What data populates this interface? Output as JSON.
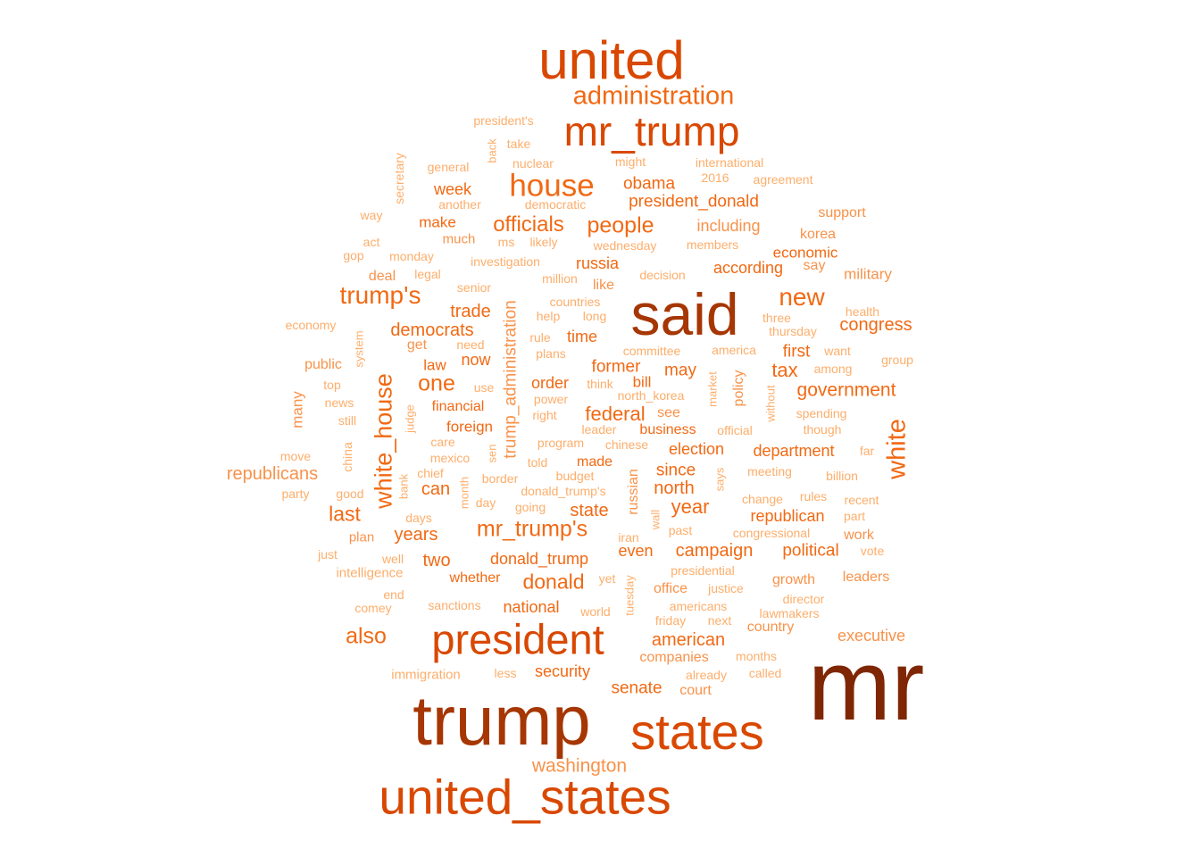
{
  "palette": {
    "darkest": "#7f2704",
    "dark": "#a63603",
    "strong": "#d94801",
    "medium": "#f16913",
    "light": "#f8924a",
    "lightest": "#fdae6b"
  },
  "words": [
    {
      "text": "mr",
      "tier": "darkest"
    },
    {
      "text": "trump",
      "tier": "dark"
    },
    {
      "text": "said",
      "tier": "dark"
    },
    {
      "text": "united",
      "tier": "strong"
    },
    {
      "text": "states",
      "tier": "strong"
    },
    {
      "text": "united_states",
      "tier": "strong"
    },
    {
      "text": "president",
      "tier": "strong"
    },
    {
      "text": "mr_trump",
      "tier": "strong"
    },
    {
      "text": "house",
      "tier": "medium"
    },
    {
      "text": "administration",
      "tier": "medium"
    },
    {
      "text": "white",
      "tier": "medium"
    },
    {
      "text": "white_house",
      "tier": "medium"
    },
    {
      "text": "trump's",
      "tier": "medium"
    },
    {
      "text": "new",
      "tier": "medium"
    },
    {
      "text": "people",
      "tier": "medium"
    },
    {
      "text": "officials",
      "tier": "medium"
    },
    {
      "text": "one",
      "tier": "medium"
    },
    {
      "text": "mr_trump's",
      "tier": "medium"
    },
    {
      "text": "also",
      "tier": "medium"
    },
    {
      "text": "washington",
      "tier": "light"
    },
    {
      "text": "donald",
      "tier": "medium"
    },
    {
      "text": "government",
      "tier": "medium"
    },
    {
      "text": "federal",
      "tier": "medium"
    },
    {
      "text": "last",
      "tier": "medium"
    },
    {
      "text": "republicans",
      "tier": "light"
    },
    {
      "text": "trump_administration",
      "tier": "light"
    },
    {
      "text": "democrats",
      "tier": "medium"
    },
    {
      "text": "year",
      "tier": "medium"
    },
    {
      "text": "north",
      "tier": "medium"
    },
    {
      "text": "congress",
      "tier": "medium"
    },
    {
      "text": "tax",
      "tier": "medium"
    },
    {
      "text": "can",
      "tier": "medium"
    },
    {
      "text": "campaign",
      "tier": "medium"
    },
    {
      "text": "state",
      "tier": "medium"
    },
    {
      "text": "american",
      "tier": "medium"
    },
    {
      "text": "security",
      "tier": "medium"
    },
    {
      "text": "senate",
      "tier": "medium"
    },
    {
      "text": "two",
      "tier": "medium"
    },
    {
      "text": "years",
      "tier": "medium"
    },
    {
      "text": "obama",
      "tier": "medium"
    },
    {
      "text": "president_donald",
      "tier": "medium"
    },
    {
      "text": "trade",
      "tier": "medium"
    },
    {
      "text": "first",
      "tier": "medium"
    },
    {
      "text": "former",
      "tier": "medium"
    },
    {
      "text": "may",
      "tier": "medium"
    },
    {
      "text": "since",
      "tier": "medium"
    },
    {
      "text": "political",
      "tier": "medium"
    },
    {
      "text": "week",
      "tier": "medium"
    },
    {
      "text": "according",
      "tier": "medium"
    },
    {
      "text": "department",
      "tier": "medium"
    },
    {
      "text": "donald_trump",
      "tier": "medium"
    },
    {
      "text": "national",
      "tier": "medium"
    },
    {
      "text": "election",
      "tier": "medium"
    },
    {
      "text": "russia",
      "tier": "medium"
    },
    {
      "text": "republican",
      "tier": "medium"
    },
    {
      "text": "order",
      "tier": "medium"
    },
    {
      "text": "bill",
      "tier": "medium"
    },
    {
      "text": "economic",
      "tier": "medium"
    },
    {
      "text": "including",
      "tier": "light"
    },
    {
      "text": "time",
      "tier": "medium"
    },
    {
      "text": "now",
      "tier": "medium"
    },
    {
      "text": "many",
      "tier": "light"
    },
    {
      "text": "policy",
      "tier": "light"
    },
    {
      "text": "russian",
      "tier": "light"
    },
    {
      "text": "foreign",
      "tier": "medium"
    },
    {
      "text": "make",
      "tier": "medium"
    },
    {
      "text": "financial",
      "tier": "medium"
    },
    {
      "text": "even",
      "tier": "medium"
    },
    {
      "text": "made",
      "tier": "medium"
    },
    {
      "text": "business",
      "tier": "medium"
    },
    {
      "text": "executive",
      "tier": "light"
    },
    {
      "text": "whether",
      "tier": "medium"
    },
    {
      "text": "military",
      "tier": "light"
    },
    {
      "text": "work",
      "tier": "light"
    },
    {
      "text": "like",
      "tier": "light"
    },
    {
      "text": "law",
      "tier": "medium"
    },
    {
      "text": "companies",
      "tier": "light"
    },
    {
      "text": "country",
      "tier": "light"
    },
    {
      "text": "growth",
      "tier": "light"
    },
    {
      "text": "office",
      "tier": "light"
    },
    {
      "text": "deal",
      "tier": "light"
    },
    {
      "text": "get",
      "tier": "light"
    },
    {
      "text": "much",
      "tier": "light"
    },
    {
      "text": "support",
      "tier": "light"
    },
    {
      "text": "korea",
      "tier": "light"
    },
    {
      "text": "leaders",
      "tier": "light"
    },
    {
      "text": "see",
      "tier": "light"
    },
    {
      "text": "public",
      "tier": "light"
    },
    {
      "text": "court",
      "tier": "light"
    },
    {
      "text": "say",
      "tier": "light"
    },
    {
      "text": "plan",
      "tier": "light"
    },
    {
      "text": "intelligence",
      "tier": "lightest"
    },
    {
      "text": "immigration",
      "tier": "lightest"
    },
    {
      "text": "sanctions",
      "tier": "lightest"
    },
    {
      "text": "world",
      "tier": "lightest"
    },
    {
      "text": "director",
      "tier": "lightest"
    },
    {
      "text": "lawmakers",
      "tier": "lightest"
    },
    {
      "text": "justice",
      "tier": "lightest"
    },
    {
      "text": "presidential",
      "tier": "lightest"
    },
    {
      "text": "americans",
      "tier": "lightest"
    },
    {
      "text": "next",
      "tier": "lightest"
    },
    {
      "text": "friday",
      "tier": "lightest"
    },
    {
      "text": "months",
      "tier": "lightest"
    },
    {
      "text": "called",
      "tier": "lightest"
    },
    {
      "text": "already",
      "tier": "lightest"
    },
    {
      "text": "less",
      "tier": "lightest"
    },
    {
      "text": "end",
      "tier": "lightest"
    },
    {
      "text": "comey",
      "tier": "lightest"
    },
    {
      "text": "yet",
      "tier": "lightest"
    },
    {
      "text": "tuesday",
      "tier": "lightest"
    },
    {
      "text": "iran",
      "tier": "lightest"
    },
    {
      "text": "past",
      "tier": "lightest"
    },
    {
      "text": "wall",
      "tier": "lightest"
    },
    {
      "text": "congressional",
      "tier": "lightest"
    },
    {
      "text": "vote",
      "tier": "lightest"
    },
    {
      "text": "part",
      "tier": "lightest"
    },
    {
      "text": "recent",
      "tier": "lightest"
    },
    {
      "text": "rules",
      "tier": "lightest"
    },
    {
      "text": "change",
      "tier": "lightest"
    },
    {
      "text": "says",
      "tier": "lightest"
    },
    {
      "text": "meeting",
      "tier": "lightest"
    },
    {
      "text": "billion",
      "tier": "lightest"
    },
    {
      "text": "far",
      "tier": "lightest"
    },
    {
      "text": "though",
      "tier": "lightest"
    },
    {
      "text": "spending",
      "tier": "lightest"
    },
    {
      "text": "without",
      "tier": "lightest"
    },
    {
      "text": "official",
      "tier": "lightest"
    },
    {
      "text": "chinese",
      "tier": "lightest"
    },
    {
      "text": "program",
      "tier": "lightest"
    },
    {
      "text": "leader",
      "tier": "lightest"
    },
    {
      "text": "market",
      "tier": "lightest"
    },
    {
      "text": "north_korea",
      "tier": "lightest"
    },
    {
      "text": "think",
      "tier": "lightest"
    },
    {
      "text": "power",
      "tier": "lightest"
    },
    {
      "text": "right",
      "tier": "lightest"
    },
    {
      "text": "help",
      "tier": "lightest"
    },
    {
      "text": "long",
      "tier": "lightest"
    },
    {
      "text": "rule",
      "tier": "lightest"
    },
    {
      "text": "plans",
      "tier": "lightest"
    },
    {
      "text": "committee",
      "tier": "lightest"
    },
    {
      "text": "america",
      "tier": "lightest"
    },
    {
      "text": "three",
      "tier": "lightest"
    },
    {
      "text": "thursday",
      "tier": "lightest"
    },
    {
      "text": "want",
      "tier": "lightest"
    },
    {
      "text": "among",
      "tier": "lightest"
    },
    {
      "text": "health",
      "tier": "lightest"
    },
    {
      "text": "group",
      "tier": "lightest"
    },
    {
      "text": "countries",
      "tier": "lightest"
    },
    {
      "text": "million",
      "tier": "lightest"
    },
    {
      "text": "decision",
      "tier": "lightest"
    },
    {
      "text": "members",
      "tier": "lightest"
    },
    {
      "text": "wednesday",
      "tier": "lightest"
    },
    {
      "text": "likely",
      "tier": "lightest"
    },
    {
      "text": "ms",
      "tier": "lightest"
    },
    {
      "text": "investigation",
      "tier": "lightest"
    },
    {
      "text": "legal",
      "tier": "lightest"
    },
    {
      "text": "senior",
      "tier": "lightest"
    },
    {
      "text": "monday",
      "tier": "lightest"
    },
    {
      "text": "act",
      "tier": "lightest"
    },
    {
      "text": "gop",
      "tier": "lightest"
    },
    {
      "text": "way",
      "tier": "lightest"
    },
    {
      "text": "another",
      "tier": "lightest"
    },
    {
      "text": "democratic",
      "tier": "lightest"
    },
    {
      "text": "general",
      "tier": "lightest"
    },
    {
      "text": "nuclear",
      "tier": "lightest"
    },
    {
      "text": "might",
      "tier": "lightest"
    },
    {
      "text": "international",
      "tier": "lightest"
    },
    {
      "text": "2016",
      "tier": "lightest"
    },
    {
      "text": "agreement",
      "tier": "lightest"
    },
    {
      "text": "take",
      "tier": "lightest"
    },
    {
      "text": "back",
      "tier": "lightest"
    },
    {
      "text": "president's",
      "tier": "lightest"
    },
    {
      "text": "secretary",
      "tier": "lightest"
    },
    {
      "text": "economy",
      "tier": "lightest"
    },
    {
      "text": "system",
      "tier": "lightest"
    },
    {
      "text": "need",
      "tier": "lightest"
    },
    {
      "text": "top",
      "tier": "lightest"
    },
    {
      "text": "use",
      "tier": "lightest"
    },
    {
      "text": "news",
      "tier": "lightest"
    },
    {
      "text": "still",
      "tier": "lightest"
    },
    {
      "text": "judge",
      "tier": "lightest"
    },
    {
      "text": "china",
      "tier": "lightest"
    },
    {
      "text": "care",
      "tier": "lightest"
    },
    {
      "text": "move",
      "tier": "lightest"
    },
    {
      "text": "mexico",
      "tier": "lightest"
    },
    {
      "text": "sen",
      "tier": "lightest"
    },
    {
      "text": "told",
      "tier": "lightest"
    },
    {
      "text": "budget",
      "tier": "lightest"
    },
    {
      "text": "chief",
      "tier": "lightest"
    },
    {
      "text": "bank",
      "tier": "lightest"
    },
    {
      "text": "border",
      "tier": "lightest"
    },
    {
      "text": "donald_trump's",
      "tier": "lightest"
    },
    {
      "text": "party",
      "tier": "lightest"
    },
    {
      "text": "good",
      "tier": "lightest"
    },
    {
      "text": "month",
      "tier": "lightest"
    },
    {
      "text": "day",
      "tier": "lightest"
    },
    {
      "text": "going",
      "tier": "lightest"
    },
    {
      "text": "days",
      "tier": "lightest"
    },
    {
      "text": "just",
      "tier": "lightest"
    },
    {
      "text": "well",
      "tier": "lightest"
    }
  ]
}
